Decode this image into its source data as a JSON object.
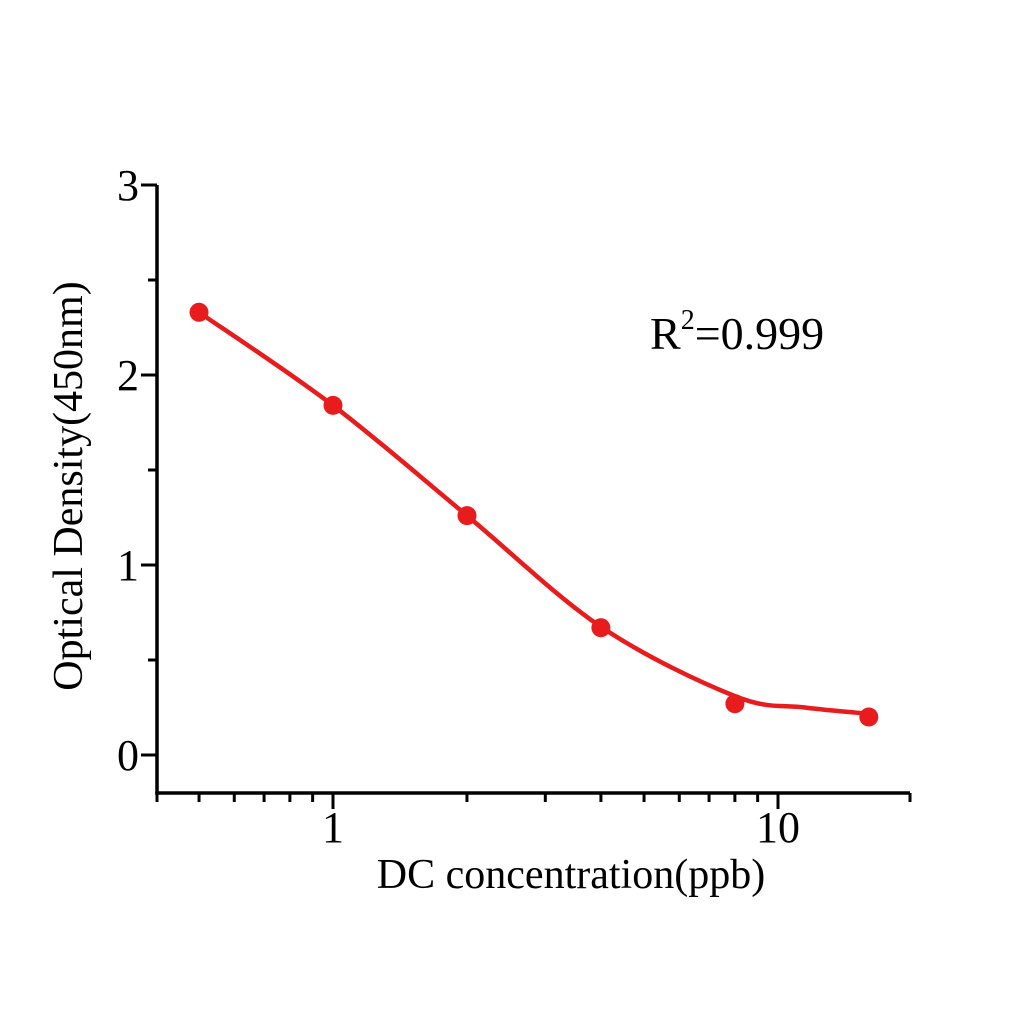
{
  "figure": {
    "background": "#ffffff"
  },
  "chart_data": {
    "type": "scatter",
    "title": "",
    "xlabel": "DC concentration(ppb)",
    "ylabel": "Optical Density(450nm)",
    "x_scale": "log",
    "y_scale": "linear",
    "x_range": [
      0.4,
      20
    ],
    "y_range": [
      -0.2,
      3
    ],
    "grid": false,
    "legend": null,
    "axis_color": "#000000",
    "x_major_ticks": [
      {
        "value": 1,
        "label": "1"
      },
      {
        "value": 10,
        "label": "10"
      }
    ],
    "x_minor_ticks": [
      0.4,
      0.5,
      0.6,
      0.7,
      0.8,
      0.9,
      2,
      3,
      4,
      5,
      6,
      7,
      8,
      9,
      20
    ],
    "y_major_ticks": [
      {
        "value": 0,
        "label": "0"
      },
      {
        "value": 1,
        "label": "1"
      },
      {
        "value": 2,
        "label": "2"
      },
      {
        "value": 3,
        "label": "3"
      }
    ],
    "y_minor_ticks": [
      0.5,
      1.5,
      2.5
    ],
    "annotation": {
      "base": "R",
      "exponent": "2",
      "rest": "=0.999"
    },
    "series": [
      {
        "name": "standard-curve",
        "color": "#e81c1c",
        "marker": "circle",
        "r_squared": 0.999,
        "points": [
          [
            0.5,
            2.33
          ],
          [
            1,
            1.84
          ],
          [
            2,
            1.26
          ],
          [
            4,
            0.67
          ],
          [
            8,
            0.27
          ],
          [
            16,
            0.2
          ]
        ],
        "fit_curve": [
          [
            0.5,
            2.33
          ],
          [
            1,
            1.84
          ],
          [
            2,
            1.26
          ],
          [
            4,
            0.675
          ],
          [
            8,
            0.31
          ],
          [
            11.5,
            0.25
          ],
          [
            16.3,
            0.215
          ]
        ]
      }
    ]
  }
}
